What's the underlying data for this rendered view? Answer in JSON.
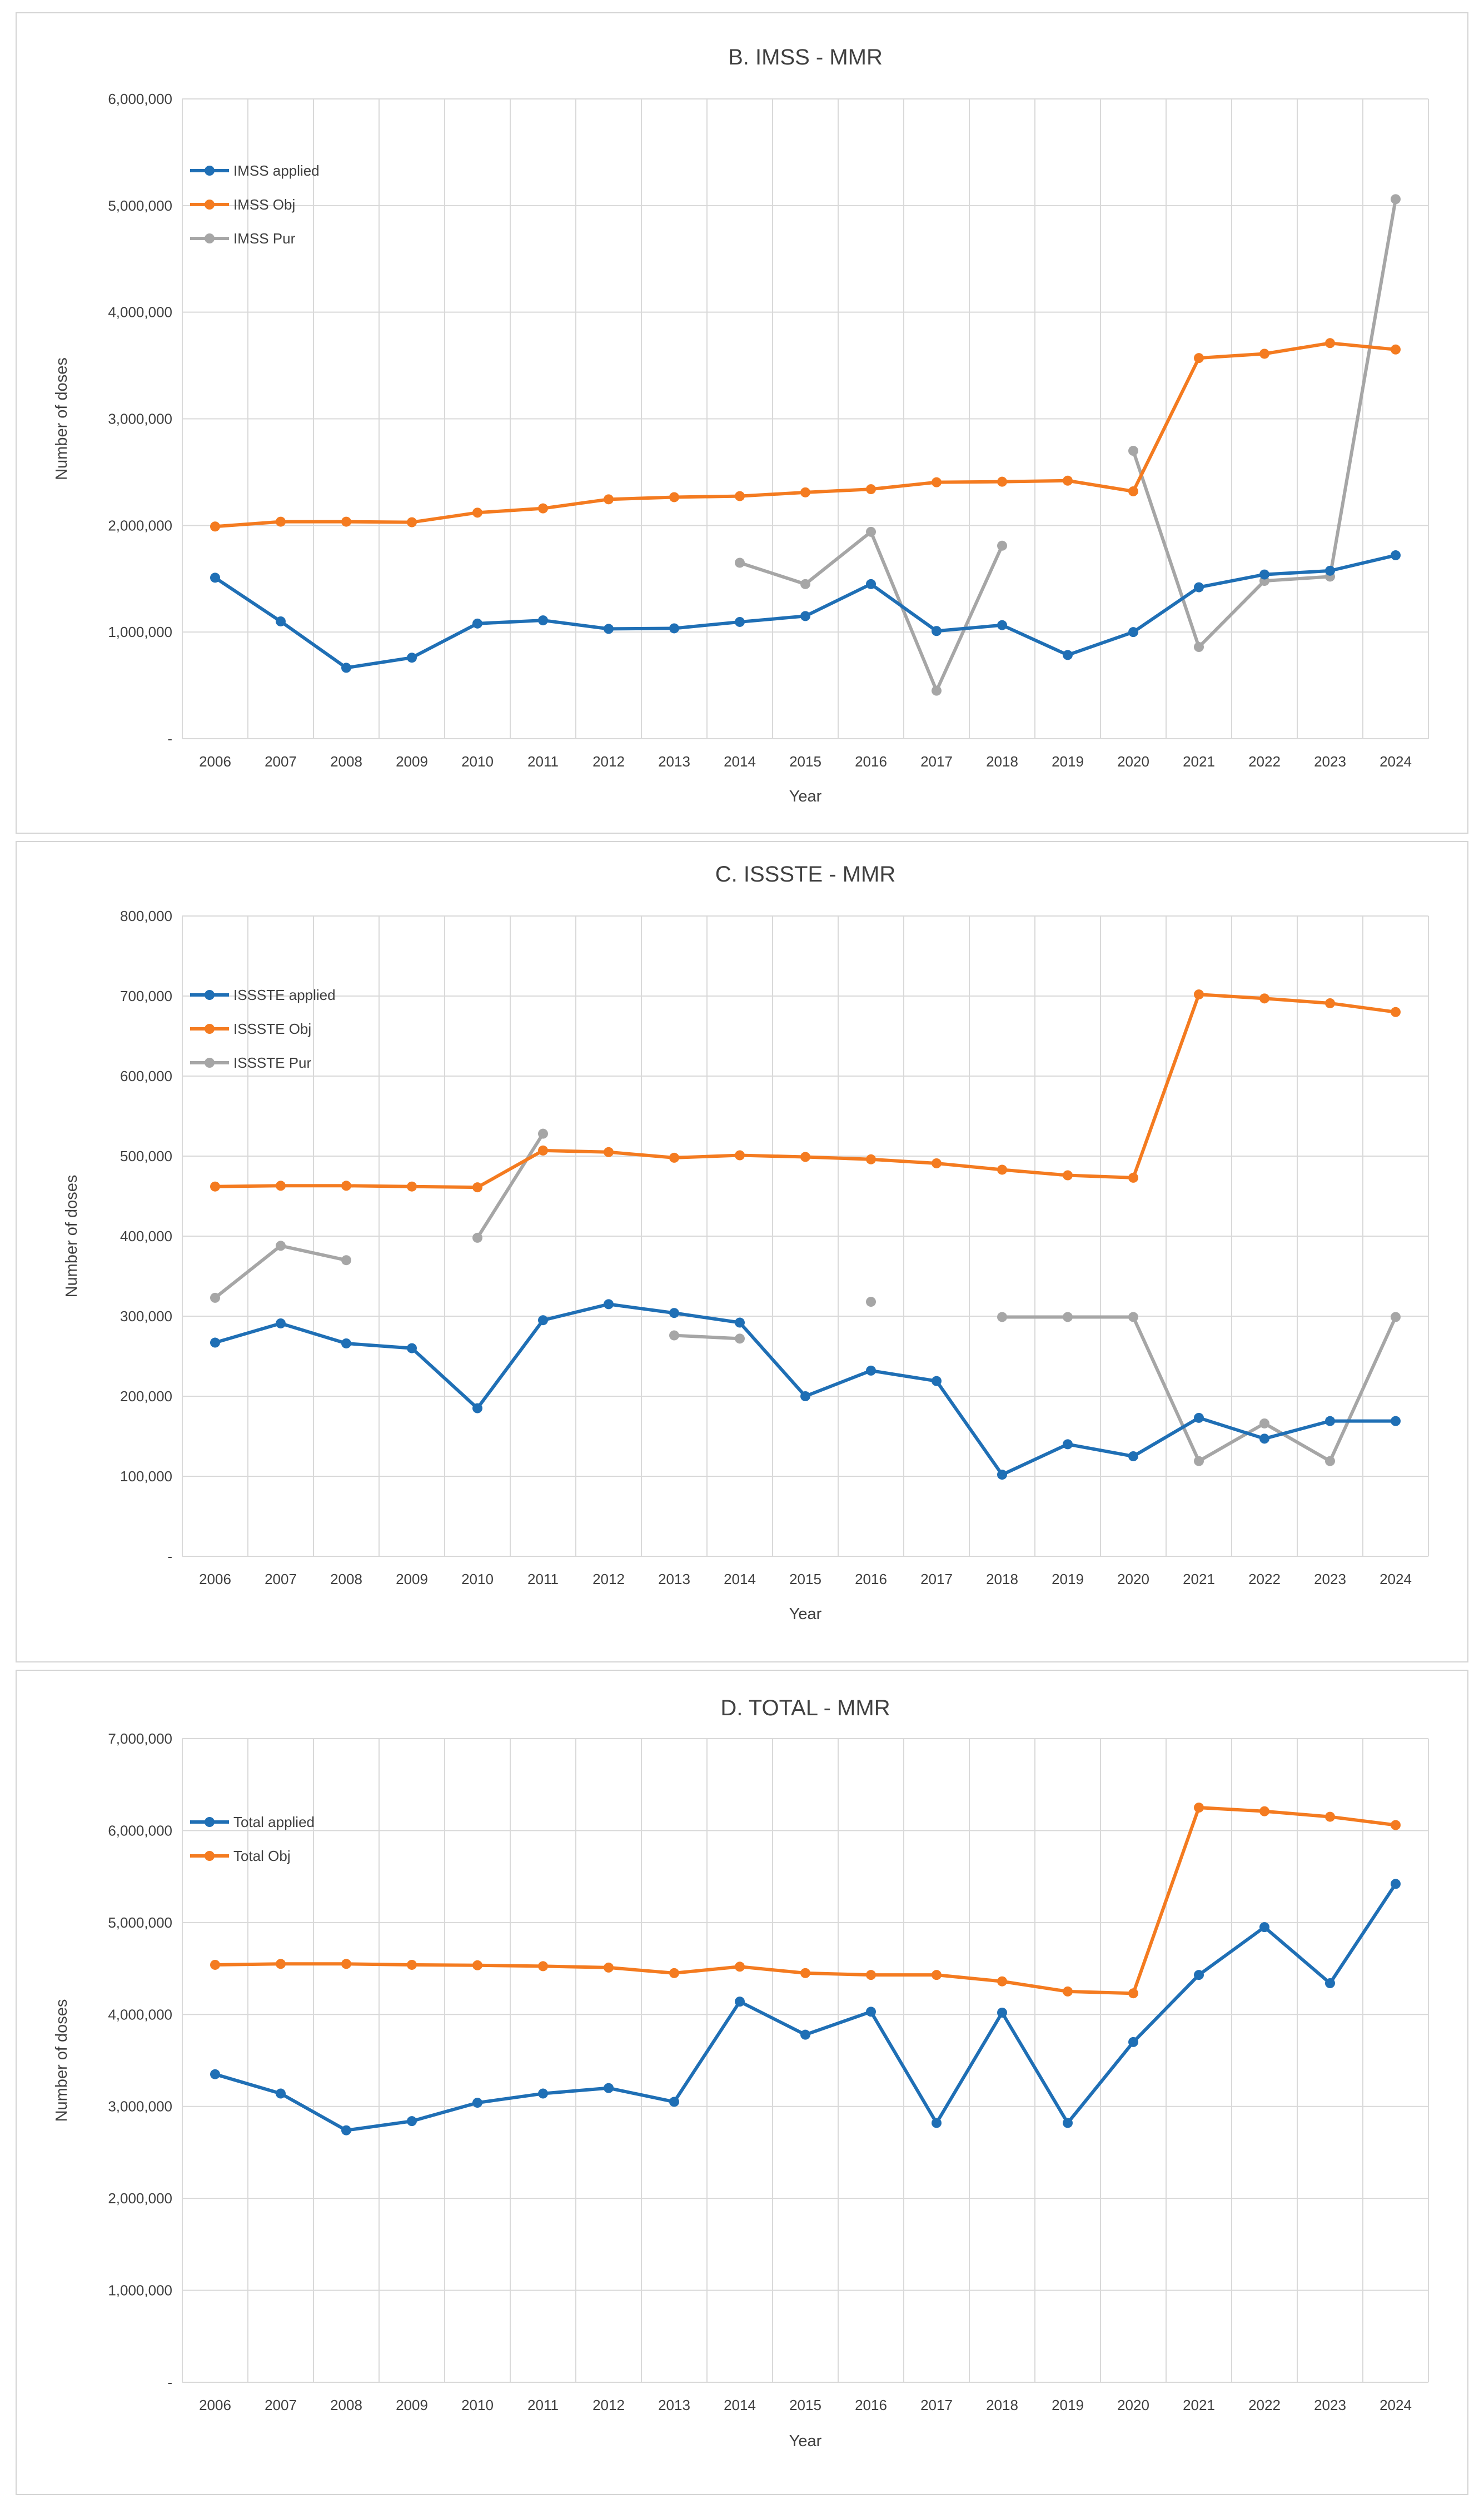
{
  "colors": {
    "applied": "#1f6fb5",
    "obj": "#f47b20",
    "pur": "#a6a6a6",
    "grid": "#d9d9d9",
    "text": "#404040"
  },
  "chart_data": [
    {
      "type": "line",
      "title": "B. IMSS - MMR",
      "xlabel": "Year",
      "ylabel": "Number of doses",
      "ylim": [
        0,
        6000000
      ],
      "yticks": [
        "-",
        "1,000,000",
        "2,000,000",
        "3,000,000",
        "4,000,000",
        "5,000,000",
        "6,000,000"
      ],
      "categories": [
        "2006",
        "2007",
        "2008",
        "2009",
        "2010",
        "2011",
        "2012",
        "2013",
        "2014",
        "2015",
        "2016",
        "2017",
        "2018",
        "2019",
        "2020",
        "2021",
        "2022",
        "2023",
        "2024"
      ],
      "legend_position": "top-left",
      "grid": true,
      "series": [
        {
          "name": "IMSS applied",
          "role": "applied",
          "values": [
            1510000,
            1100000,
            665000,
            760000,
            1080000,
            1110000,
            1030000,
            1035000,
            1095000,
            1150000,
            1450000,
            1010000,
            1065000,
            785000,
            1000000,
            1420000,
            1540000,
            1575000,
            1720000
          ]
        },
        {
          "name": "IMSS Obj",
          "role": "obj",
          "values": [
            1990000,
            2035000,
            2035000,
            2030000,
            2120000,
            2160000,
            2245000,
            2265000,
            2275000,
            2310000,
            2340000,
            2405000,
            2410000,
            2420000,
            2320000,
            3570000,
            3610000,
            3710000,
            3650000
          ]
        },
        {
          "name": "IMSS Pur",
          "role": "pur",
          "values": [
            null,
            null,
            null,
            null,
            null,
            null,
            null,
            null,
            1650000,
            1450000,
            1940000,
            450000,
            1810000,
            null,
            2700000,
            860000,
            1480000,
            1520000,
            5060000
          ]
        }
      ]
    },
    {
      "type": "line",
      "title": "C. ISSSTE - MMR",
      "xlabel": "Year",
      "ylabel": "Number of doses",
      "ylim": [
        0,
        800000
      ],
      "yticks": [
        "-",
        "100,000",
        "200,000",
        "300,000",
        "400,000",
        "500,000",
        "600,000",
        "700,000",
        "800,000"
      ],
      "categories": [
        "2006",
        "2007",
        "2008",
        "2009",
        "2010",
        "2011",
        "2012",
        "2013",
        "2014",
        "2015",
        "2016",
        "2017",
        "2018",
        "2019",
        "2020",
        "2021",
        "2022",
        "2023",
        "2024"
      ],
      "legend_position": "top-left",
      "grid": true,
      "series": [
        {
          "name": "ISSSTE applied",
          "role": "applied",
          "values": [
            267000,
            291000,
            266000,
            260000,
            185000,
            295000,
            315000,
            304000,
            292000,
            200000,
            232000,
            219000,
            102000,
            140000,
            125000,
            173000,
            147000,
            169000,
            169000
          ]
        },
        {
          "name": "ISSSTE Obj",
          "role": "obj",
          "values": [
            462000,
            463000,
            463000,
            462000,
            461000,
            507000,
            505000,
            498000,
            501000,
            499000,
            496000,
            491000,
            483000,
            476000,
            473000,
            702000,
            697000,
            691000,
            680000
          ]
        },
        {
          "name": "ISSSTE Pur",
          "role": "pur",
          "values": [
            323000,
            388000,
            370000,
            null,
            398000,
            528000,
            null,
            276000,
            272000,
            null,
            318000,
            null,
            299000,
            299000,
            299000,
            119000,
            166000,
            119000,
            299000
          ]
        }
      ]
    },
    {
      "type": "line",
      "title": "D. TOTAL - MMR",
      "xlabel": "Year",
      "ylabel": "Number of doses",
      "ylim": [
        0,
        7000000
      ],
      "yticks": [
        "-",
        "1,000,000",
        "2,000,000",
        "3,000,000",
        "4,000,000",
        "5,000,000",
        "6,000,000",
        "7,000,000"
      ],
      "categories": [
        "2006",
        "2007",
        "2008",
        "2009",
        "2010",
        "2011",
        "2012",
        "2013",
        "2014",
        "2015",
        "2016",
        "2017",
        "2018",
        "2019",
        "2020",
        "2021",
        "2022",
        "2023",
        "2024"
      ],
      "legend_position": "top-left",
      "grid": true,
      "series": [
        {
          "name": "Total applied",
          "role": "applied",
          "values": [
            3350000,
            3140000,
            2740000,
            2840000,
            3040000,
            3140000,
            3200000,
            3050000,
            4140000,
            3780000,
            4030000,
            2820000,
            4020000,
            2820000,
            3700000,
            4430000,
            4950000,
            4340000,
            5420000
          ]
        },
        {
          "name": "Total Obj",
          "role": "obj",
          "values": [
            4540000,
            4550000,
            4550000,
            4540000,
            4535000,
            4525000,
            4510000,
            4450000,
            4520000,
            4450000,
            4430000,
            4430000,
            4360000,
            4250000,
            4230000,
            6250000,
            6210000,
            6150000,
            6060000
          ]
        }
      ]
    }
  ]
}
